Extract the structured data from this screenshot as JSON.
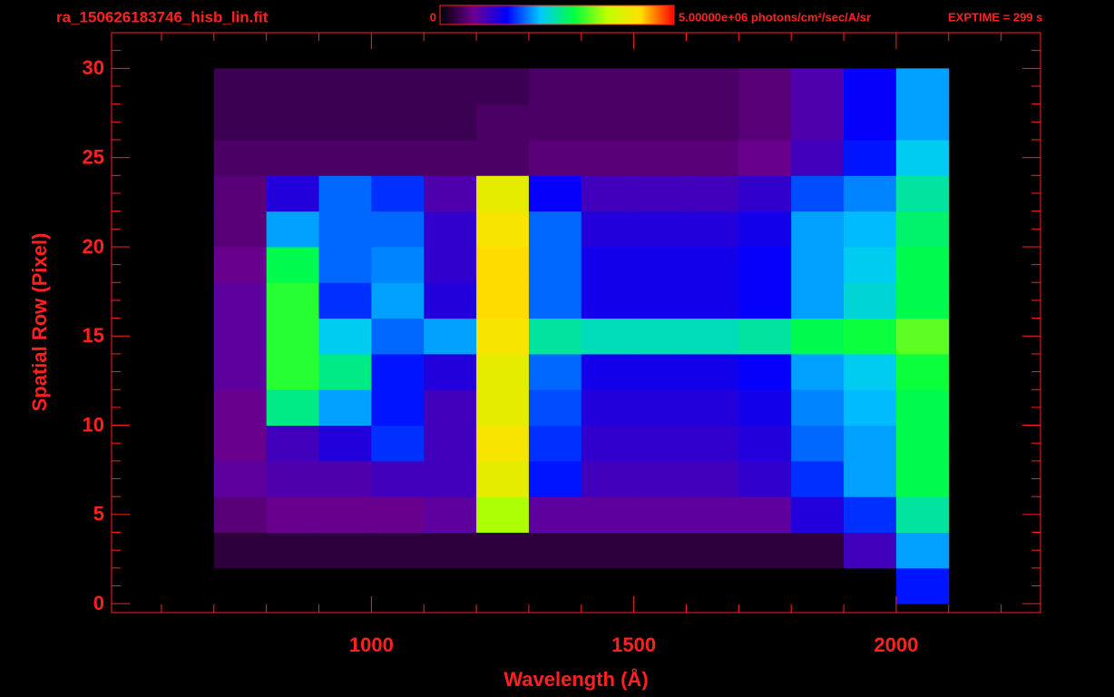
{
  "chart_data": {
    "type": "heatmap",
    "title": "ra_150626183746_hisb_lin.fit",
    "annotation": "EXPTIME = 299 s",
    "x_label": "Wavelength (Å)",
    "y_label": "Spatial Row (Pixel)",
    "xlim": [
      505,
      2275
    ],
    "ylim": [
      -0.5,
      32
    ],
    "xticks": [
      1000,
      1500,
      2000
    ],
    "yticks": [
      0,
      5,
      10,
      15,
      20,
      25,
      30
    ],
    "xticks_minor": [
      600,
      700,
      800,
      900,
      1100,
      1200,
      1300,
      1400,
      1600,
      1700,
      1800,
      1900,
      2100,
      2200
    ],
    "yticks_minor": [
      1,
      2,
      3,
      4,
      6,
      7,
      8,
      9,
      11,
      12,
      13,
      14,
      16,
      17,
      18,
      19,
      21,
      22,
      23,
      24,
      26,
      27,
      28,
      29,
      31
    ],
    "axis_color": "#ff2020",
    "colormap": [
      "#000000",
      "#6a0090",
      "#0000ff",
      "#00c8ff",
      "#00ff40",
      "#c0ff00",
      "#ffe000",
      "#ff0000"
    ],
    "colorbar": {
      "lim": [
        0,
        5000000
      ],
      "ticks": [
        0,
        {
          "value": 5000000,
          "label": "5.00000e+06 photons/cm²/sec/A/sr"
        }
      ]
    },
    "x_edges": [
      700,
      800,
      900,
      1000,
      1100,
      1200,
      1300,
      1400,
      1500,
      1600,
      1700,
      1800,
      1900,
      2000,
      2100
    ],
    "y_edges": [
      0,
      2,
      4,
      6,
      8,
      10,
      12,
      14,
      16,
      18,
      20,
      22,
      24,
      26,
      28,
      30
    ],
    "values": [
      [
        0,
        0,
        0,
        0,
        0,
        0,
        0,
        0,
        0,
        0,
        0,
        0,
        0,
        1500000.0
      ],
      [
        300000.0,
        300000.0,
        300000.0,
        300000.0,
        300000.0,
        300000.0,
        300000.0,
        300000.0,
        300000.0,
        300000.0,
        300000.0,
        300000.0,
        1000000.0,
        2000000.0
      ],
      [
        600000.0,
        700000.0,
        700000.0,
        700000.0,
        800000.0,
        3500000.0,
        800000.0,
        800000.0,
        800000.0,
        800000.0,
        800000.0,
        1200000.0,
        1600000.0,
        2500000.0
      ],
      [
        800000.0,
        900000.0,
        900000.0,
        1000000.0,
        1000000.0,
        4000000.0,
        1500000.0,
        1000000.0,
        1000000.0,
        1000000.0,
        1100000.0,
        1600000.0,
        2000000.0,
        2800000.0
      ],
      [
        700000.0,
        1000000.0,
        1200000.0,
        1600000.0,
        1000000.0,
        4200000.0,
        1600000.0,
        1100000.0,
        1100000.0,
        1100000.0,
        1200000.0,
        1800000.0,
        2000000.0,
        2800000.0
      ],
      [
        700000.0,
        2600000.0,
        2000000.0,
        1500000.0,
        1000000.0,
        4000000.0,
        1700000.0,
        1200000.0,
        1200000.0,
        1200000.0,
        1300000.0,
        1900000.0,
        2100000.0,
        2800000.0
      ],
      [
        800000.0,
        3000000.0,
        2600000.0,
        1500000.0,
        1200000.0,
        4000000.0,
        1800000.0,
        1300000.0,
        1300000.0,
        1300000.0,
        1400000.0,
        2000000.0,
        2200000.0,
        2900000.0
      ],
      [
        800000.0,
        3000000.0,
        2200000.0,
        1800000.0,
        2000000.0,
        4200000.0,
        2500000.0,
        2400000.0,
        2400000.0,
        2400000.0,
        2500000.0,
        2800000.0,
        2900000.0,
        3200000.0
      ],
      [
        800000.0,
        3000000.0,
        1600000.0,
        2000000.0,
        1200000.0,
        4300000.0,
        1800000.0,
        1300000.0,
        1300000.0,
        1300000.0,
        1400000.0,
        2000000.0,
        2300000.0,
        2800000.0
      ],
      [
        700000.0,
        2800000.0,
        1800000.0,
        1900000.0,
        1100000.0,
        4300000.0,
        1800000.0,
        1300000.0,
        1300000.0,
        1300000.0,
        1400000.0,
        2000000.0,
        2200000.0,
        2800000.0
      ],
      [
        600000.0,
        2000000.0,
        1800000.0,
        1800000.0,
        1100000.0,
        4200000.0,
        1800000.0,
        1200000.0,
        1200000.0,
        1200000.0,
        1300000.0,
        2000000.0,
        2100000.0,
        2700000.0
      ],
      [
        600000.0,
        1200000.0,
        1800000.0,
        1600000.0,
        900000.0,
        4000000.0,
        1400000.0,
        1000000.0,
        1000000.0,
        1000000.0,
        1100000.0,
        1700000.0,
        1900000.0,
        2500000.0
      ],
      [
        500000.0,
        500000.0,
        500000.0,
        500000.0,
        500000.0,
        500000.0,
        600000.0,
        600000.0,
        600000.0,
        600000.0,
        700000.0,
        1000000.0,
        1500000.0,
        2200000.0
      ],
      [
        400000.0,
        400000.0,
        400000.0,
        400000.0,
        400000.0,
        500000.0,
        500000.0,
        500000.0,
        500000.0,
        500000.0,
        600000.0,
        900000.0,
        1400000.0,
        2000000.0
      ],
      [
        400000.0,
        400000.0,
        400000.0,
        400000.0,
        400000.0,
        400000.0,
        500000.0,
        500000.0,
        500000.0,
        500000.0,
        600000.0,
        900000.0,
        1400000.0,
        2000000.0
      ]
    ]
  }
}
